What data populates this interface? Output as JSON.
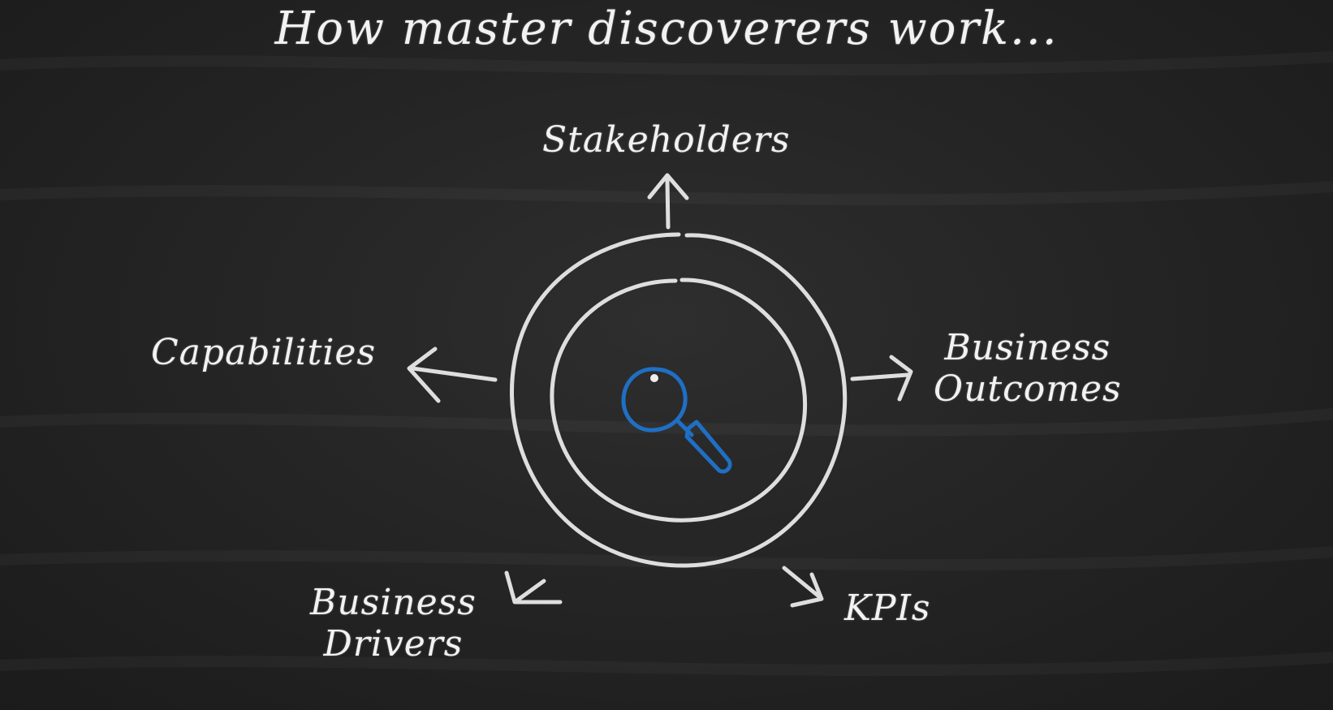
{
  "title": "How master discoverers work...",
  "labels": {
    "stakeholders": "Stakeholders",
    "capabilities": "Capabilities",
    "business_outcomes_line1": "Business",
    "business_outcomes_line2": "Outcomes",
    "business_drivers_line1": "Business",
    "business_drivers_line2": "Drivers",
    "kpis": "KPIs"
  },
  "center_icon": "magnifying-glass-icon",
  "colors": {
    "chalk": "#f2f2f2",
    "board": "#252525",
    "icon": "#1f6fc4"
  }
}
